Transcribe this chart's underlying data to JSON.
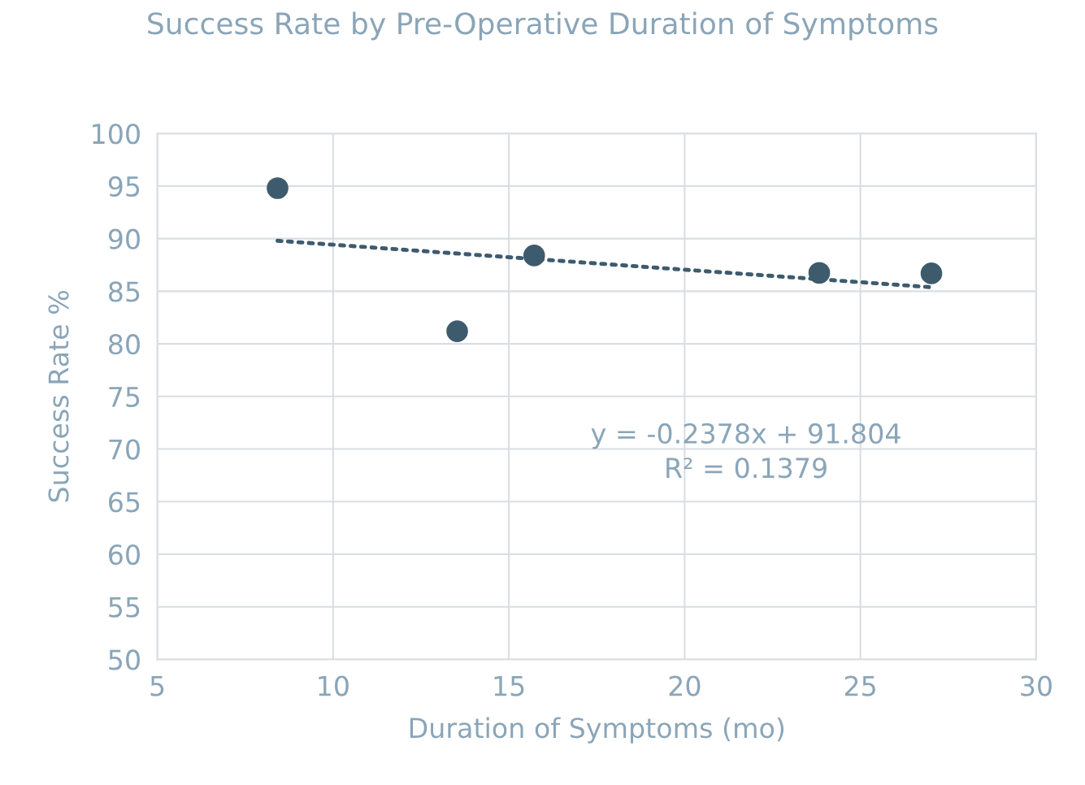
{
  "chart_data": {
    "type": "scatter",
    "title": "Success Rate by Pre-Operative Duration of Symptoms",
    "xlabel": "Duration of Symptoms (mo)",
    "ylabel": "Success Rate %",
    "series": [
      {
        "color": "#3e5b6e",
        "x": [
          8.42,
          13.53,
          15.72,
          23.83,
          27.02
        ],
        "values": [
          94.8,
          81.2,
          88.4,
          86.75,
          86.7
        ],
        "marker": "circle"
      },
      {
        "type": "line",
        "color": "#3e5b6e",
        "x": [
          8.42,
          27.02
        ],
        "values": [
          89.8,
          85.38
        ],
        "line_style": "dotted",
        "marker": "none"
      }
    ],
    "annotations": [
      "y = -0.2378x + 91.804\nR² = 0.1379"
    ],
    "xlim": [
      5,
      30
    ],
    "xticks": [
      5,
      10,
      15,
      20,
      25,
      30
    ],
    "ylim": [
      50,
      100
    ],
    "yticks": [
      50,
      55,
      60,
      65,
      70,
      75,
      80,
      85,
      90,
      95,
      100
    ],
    "grid": true
  }
}
